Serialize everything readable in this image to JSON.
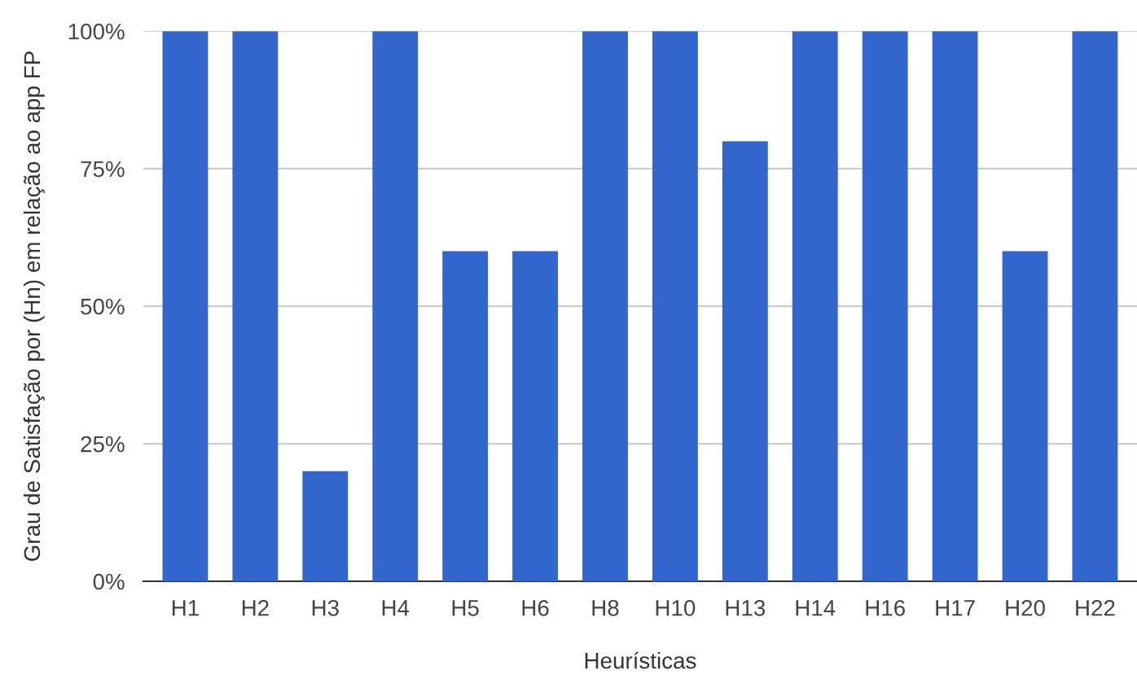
{
  "chart_data": {
    "type": "bar",
    "xlabel": "Heurísticas",
    "ylabel": "Grau de Satisfação por (Hn) em relação ao app FP",
    "categories": [
      "H1",
      "H2",
      "H3",
      "H4",
      "H5",
      "H6",
      "H8",
      "H10",
      "H13",
      "H14",
      "H16",
      "H17",
      "H20",
      "H22"
    ],
    "values": [
      100,
      100,
      20,
      100,
      60,
      60,
      100,
      100,
      80,
      100,
      100,
      100,
      60,
      100
    ],
    "color": "#3366cc",
    "ylim": [
      0,
      100
    ],
    "yticks": [
      {
        "value": 0,
        "label": "0%"
      },
      {
        "value": 25,
        "label": "25%"
      },
      {
        "value": 50,
        "label": "50%"
      },
      {
        "value": 75,
        "label": "75%"
      },
      {
        "value": 100,
        "label": "100%"
      }
    ],
    "grid": "y",
    "legend": false
  }
}
